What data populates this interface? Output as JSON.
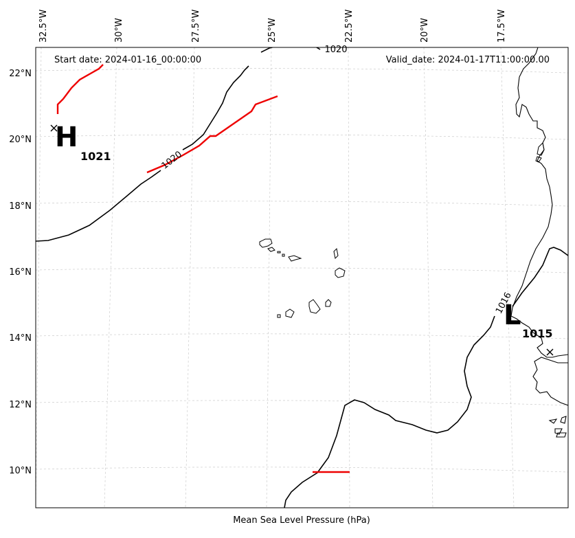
{
  "header": {
    "start_date": "Start date: 2024-01-16_00:00:00",
    "valid_date": "Valid_date: 2024-01-17T11:00:00.00"
  },
  "footer": {
    "caption": "Mean Sea Level Pressure (hPa)"
  },
  "axes": {
    "lon_labels": [
      "32.5°W",
      "30°W",
      "27.5°W",
      "25°W",
      "22.5°W",
      "20°W",
      "17.5°W"
    ],
    "lat_labels": [
      "22°N",
      "20°N",
      "18°N",
      "16°N",
      "14°N",
      "12°N",
      "10°N"
    ]
  },
  "isobars": {
    "labels": [
      "1020",
      "1020",
      "1016"
    ]
  },
  "pressure_centers": {
    "high": {
      "letter": "H",
      "value": "1021"
    },
    "low": {
      "letter": "L",
      "value": "1015"
    }
  },
  "colors": {
    "isobar": "#000000",
    "front": "#ee0000",
    "coast": "#000000",
    "grid": "#cccccc"
  }
}
